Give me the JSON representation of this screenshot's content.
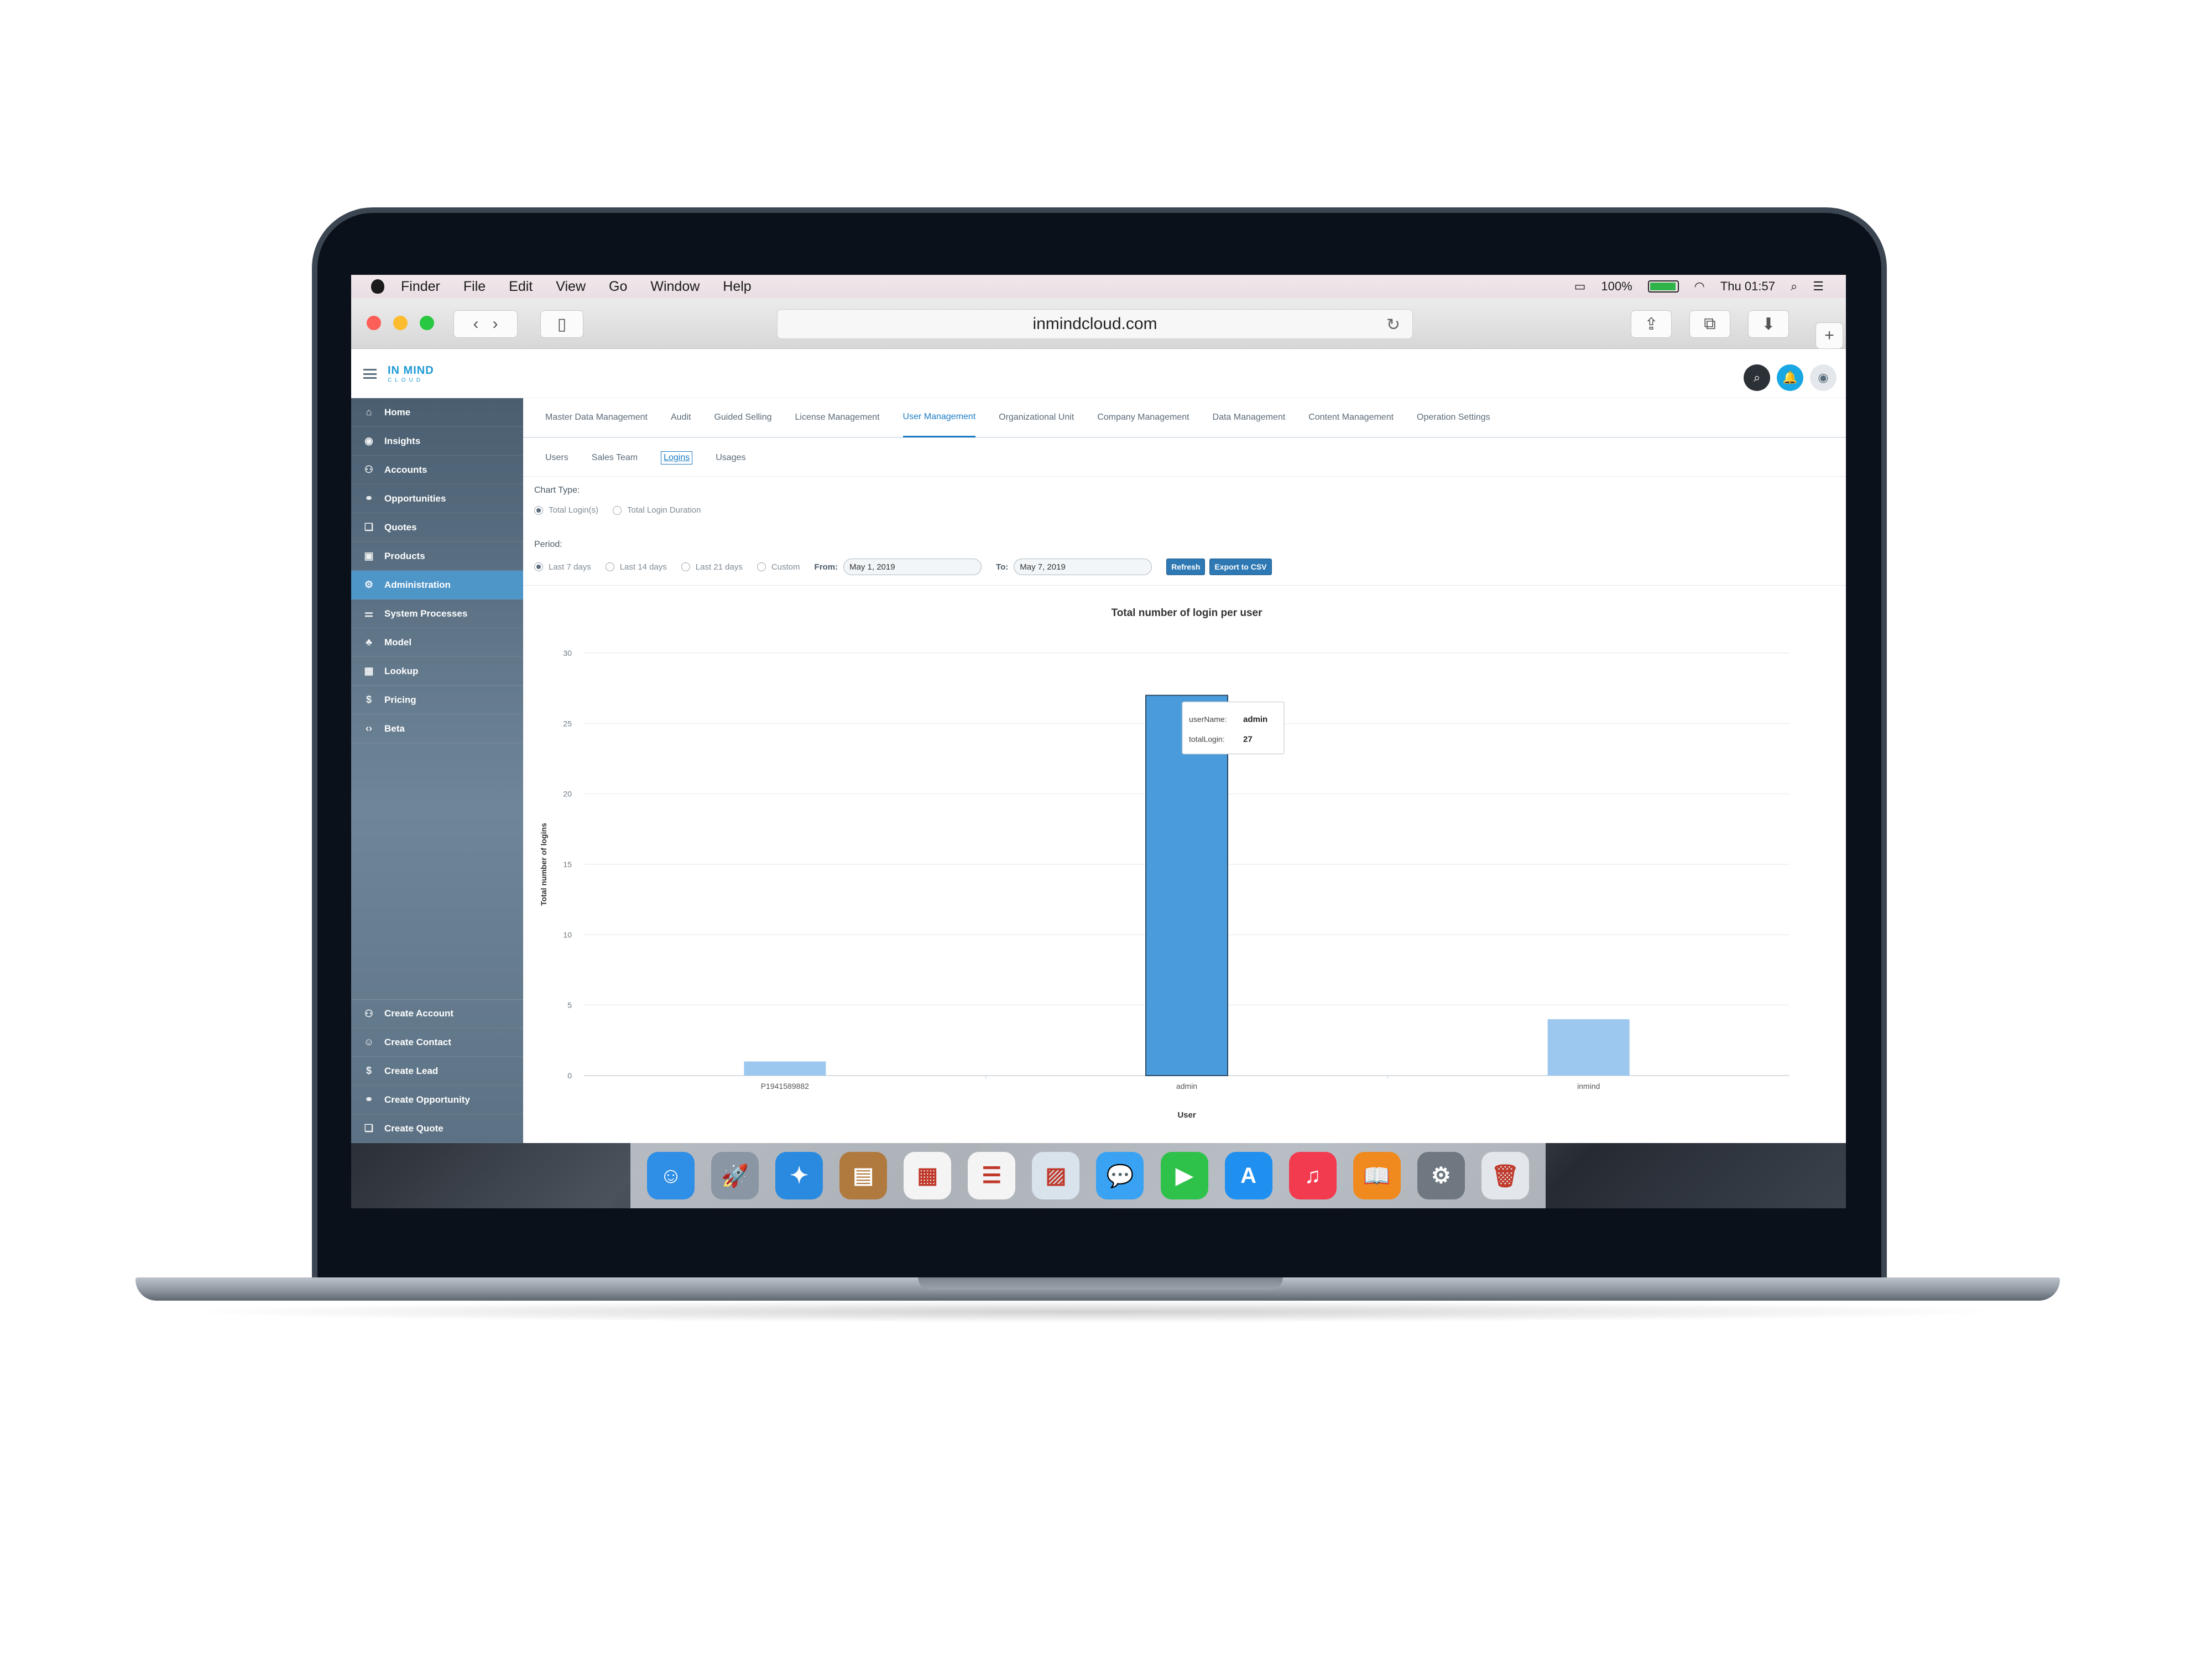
{
  "menubar": {
    "items": [
      "Finder",
      "File",
      "Edit",
      "View",
      "Go",
      "Window",
      "Help"
    ],
    "battery": "100%",
    "clock": "Thu 01:57"
  },
  "browser": {
    "url": "inmindcloud.com"
  },
  "app": {
    "logo_line1": "IN MIND",
    "logo_line2": "CLOUD"
  },
  "sidebar": {
    "items": [
      {
        "label": "Home",
        "icon": "home-icon"
      },
      {
        "label": "Insights",
        "icon": "eye-icon"
      },
      {
        "label": "Accounts",
        "icon": "accounts-icon"
      },
      {
        "label": "Opportunities",
        "icon": "handshake-icon"
      },
      {
        "label": "Quotes",
        "icon": "quote-icon"
      },
      {
        "label": "Products",
        "icon": "box-icon"
      },
      {
        "label": "Administration",
        "icon": "admin-icon"
      },
      {
        "label": "System Processes",
        "icon": "process-icon"
      },
      {
        "label": "Model",
        "icon": "model-icon"
      },
      {
        "label": "Lookup",
        "icon": "table-icon"
      },
      {
        "label": "Pricing",
        "icon": "dollar-icon"
      },
      {
        "label": "Beta",
        "icon": "code-icon"
      }
    ],
    "quick_actions": [
      {
        "label": "Create Account",
        "icon": "create-account-icon"
      },
      {
        "label": "Create Contact",
        "icon": "create-contact-icon"
      },
      {
        "label": "Create Lead",
        "icon": "create-lead-icon"
      },
      {
        "label": "Create Opportunity",
        "icon": "create-opportunity-icon"
      },
      {
        "label": "Create Quote",
        "icon": "create-quote-icon"
      }
    ],
    "active": "Administration"
  },
  "main_tabs": [
    "Master Data Management",
    "Audit",
    "Guided Selling",
    "License Management",
    "User Management",
    "Organizational Unit",
    "Company Management",
    "Data Management",
    "Content Management",
    "Operation Settings"
  ],
  "main_tab_active": "User Management",
  "sub_tabs": [
    "Users",
    "Sales Team",
    "Logins",
    "Usages"
  ],
  "sub_tab_active": "Logins",
  "form": {
    "chart_type_label": "Chart Type:",
    "chart_type_options": [
      "Total Login(s)",
      "Total Login Duration"
    ],
    "chart_type_selected": "Total Login(s)",
    "period_label": "Period:",
    "period_options": [
      "Last 7 days",
      "Last 14 days",
      "Last 21 days",
      "Custom"
    ],
    "period_selected": "Last 7 days",
    "from_label": "From:",
    "from_value": "May 1, 2019",
    "to_label": "To:",
    "to_value": "May 7, 2019",
    "refresh_label": "Refresh",
    "export_label": "Export to CSV"
  },
  "chart_data": {
    "type": "bar",
    "title": "Total number of login per user",
    "xlabel": "User",
    "ylabel": "Total number of logins",
    "categories": [
      "P1941589882",
      "admin",
      "inmind"
    ],
    "values": [
      1,
      27,
      4
    ],
    "ylim": [
      0,
      30
    ],
    "yticks": [
      0,
      5,
      10,
      15,
      20,
      25,
      30
    ],
    "grid": true,
    "highlight": "admin",
    "colors": {
      "bar": "#9cc7ee",
      "highlight": "#4a9bdb"
    },
    "tooltip": {
      "key1": "userName:",
      "val1": "admin",
      "key2": "totalLogin:",
      "val2": "27"
    }
  },
  "dock": {
    "apps": [
      {
        "name": "finder-icon",
        "color": "#2f8ee6"
      },
      {
        "name": "launchpad-icon",
        "color": "#8a96a3"
      },
      {
        "name": "safari-icon",
        "color": "#2a8ae0"
      },
      {
        "name": "contacts-icon",
        "color": "#b07a3e"
      },
      {
        "name": "calendar-icon",
        "color": "#f4f4f4"
      },
      {
        "name": "reminders-icon",
        "color": "#f4f4f4"
      },
      {
        "name": "preview-icon",
        "color": "#d8e3ec"
      },
      {
        "name": "messages-icon",
        "color": "#39a2f2"
      },
      {
        "name": "facetime-icon",
        "color": "#2fc24a"
      },
      {
        "name": "app-store-icon",
        "color": "#1f8ff0"
      },
      {
        "name": "itunes-icon",
        "color": "#f23b4f"
      },
      {
        "name": "ibooks-icon",
        "color": "#f08a1f"
      },
      {
        "name": "system-preferences-icon",
        "color": "#6f7780"
      },
      {
        "name": "trash-icon",
        "color": "#e3e7eb"
      }
    ]
  }
}
